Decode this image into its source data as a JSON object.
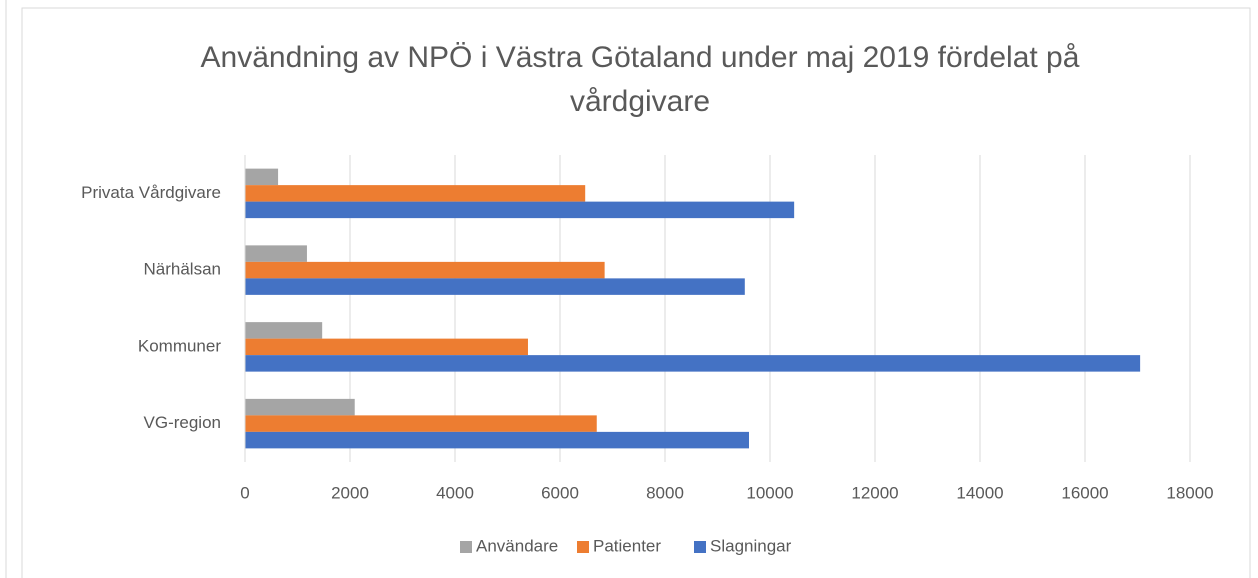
{
  "chart_data": {
    "type": "hbar",
    "title": "Användning av NPÖ i Västra Götaland under maj 2019 fördelat på vårdgivare",
    "categories": [
      "VG-region",
      "Kommuner",
      "Närhälsan",
      "Privata Vårdgivare"
    ],
    "series": [
      {
        "name": "Användare",
        "color": "#a5a5a5",
        "values": [
          2090,
          1470,
          1180,
          630
        ]
      },
      {
        "name": "Patienter",
        "color": "#ed7d31",
        "values": [
          6700,
          5390,
          6850,
          6480
        ]
      },
      {
        "name": "Slagningar",
        "color": "#4472c4",
        "values": [
          9600,
          17050,
          9520,
          10460
        ]
      }
    ],
    "xlim": [
      0,
      18000
    ],
    "xticks": [
      0,
      2000,
      4000,
      6000,
      8000,
      10000,
      12000,
      14000,
      16000,
      18000
    ],
    "grid": true,
    "legend": "bottom"
  }
}
